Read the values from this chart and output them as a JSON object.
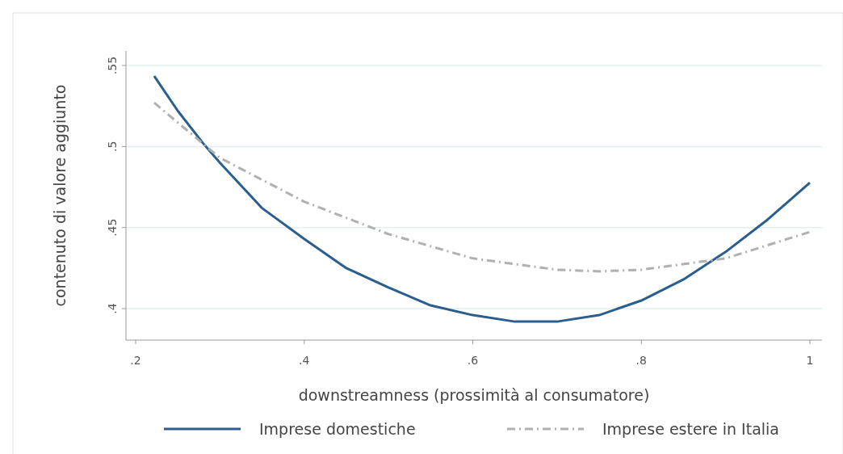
{
  "chart_data": {
    "type": "line",
    "xlabel": "downstreamness (prossimità al consumatore)",
    "ylabel": "contenuto di valore aggiunto",
    "xlim": [
      0.1885,
      1.0144
    ],
    "xticks": [
      {
        "value": 0.2,
        "label": ".2"
      },
      {
        "value": 0.4,
        "label": ".4"
      },
      {
        "value": 0.6,
        "label": ".6"
      },
      {
        "value": 0.8,
        "label": ".8"
      },
      1
    ],
    "ylim": [
      0.3806,
      0.559
    ],
    "yticks": [
      {
        "value": 0.4,
        "label": ".4"
      },
      {
        "value": 0.45,
        "label": ".45"
      },
      {
        "value": 0.5,
        "label": ".5"
      },
      {
        "value": 0.55,
        "label": ".55"
      }
    ],
    "grid": "y",
    "legend": "bottom",
    "marker": "none",
    "series": [
      {
        "name": "Imprese domestiche",
        "color": "#2a5e8f",
        "line_style": "solid",
        "x": [
          0.222,
          0.25,
          0.28,
          0.3,
          0.35,
          0.4,
          0.45,
          0.5,
          0.55,
          0.6,
          0.65,
          0.7,
          0.75,
          0.8,
          0.85,
          0.9,
          0.95,
          1.0
        ],
        "values": [
          0.5435,
          0.522,
          0.502,
          0.49,
          0.462,
          0.443,
          0.425,
          0.413,
          0.402,
          0.396,
          0.392,
          0.392,
          0.396,
          0.405,
          0.418,
          0.435,
          0.455,
          0.4777
        ]
      },
      {
        "name": "Imprese estere in Italia",
        "color": "#b0b0b0",
        "line_style": "dashed",
        "x": [
          0.222,
          0.3,
          0.4,
          0.5,
          0.6,
          0.7,
          0.75,
          0.8,
          0.9,
          1.0
        ],
        "values": [
          0.527,
          0.493,
          0.466,
          0.446,
          0.431,
          0.424,
          0.423,
          0.424,
          0.431,
          0.4473
        ]
      }
    ]
  }
}
